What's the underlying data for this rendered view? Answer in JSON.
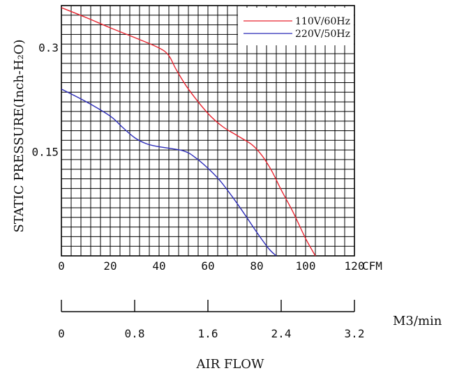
{
  "chart_data": {
    "type": "line",
    "ylabel": "STATIC PRESSURE(Inch-H₂O)",
    "xlabel": "AIR FLOW",
    "x_unit": "CFM",
    "x2_unit": "M3/min",
    "xlim": [
      0,
      120
    ],
    "ylim": [
      0,
      0.36
    ],
    "x_ticks": [
      "0",
      "20",
      "40",
      "60",
      "80",
      "100",
      "120"
    ],
    "y_ticks": [
      "0.3",
      "0.15"
    ],
    "x2_ticks": [
      "0",
      "0.8",
      "1.6",
      "2.4",
      "3.2"
    ],
    "grid": true,
    "legend": "top-right",
    "series": [
      {
        "name": "110V/60Hz",
        "color": "#e8232e",
        "x": [
          0,
          10,
          20,
          30,
          40,
          44,
          47,
          52,
          60,
          66,
          72,
          78,
          82,
          86,
          90,
          95,
          100,
          104
        ],
        "y": [
          0.357,
          0.343,
          0.328,
          0.314,
          0.299,
          0.288,
          0.268,
          0.24,
          0.205,
          0.186,
          0.173,
          0.16,
          0.145,
          0.123,
          0.095,
          0.062,
          0.025,
          0.0
        ]
      },
      {
        "name": "220V/50Hz",
        "color": "#2b2bb8",
        "x": [
          0,
          10,
          20,
          25,
          30,
          35,
          40,
          50,
          55,
          60,
          65,
          70,
          75,
          80,
          85,
          88
        ],
        "y": [
          0.24,
          0.222,
          0.201,
          0.185,
          0.17,
          0.161,
          0.157,
          0.151,
          0.141,
          0.126,
          0.108,
          0.085,
          0.06,
          0.034,
          0.01,
          0.0
        ]
      }
    ]
  }
}
